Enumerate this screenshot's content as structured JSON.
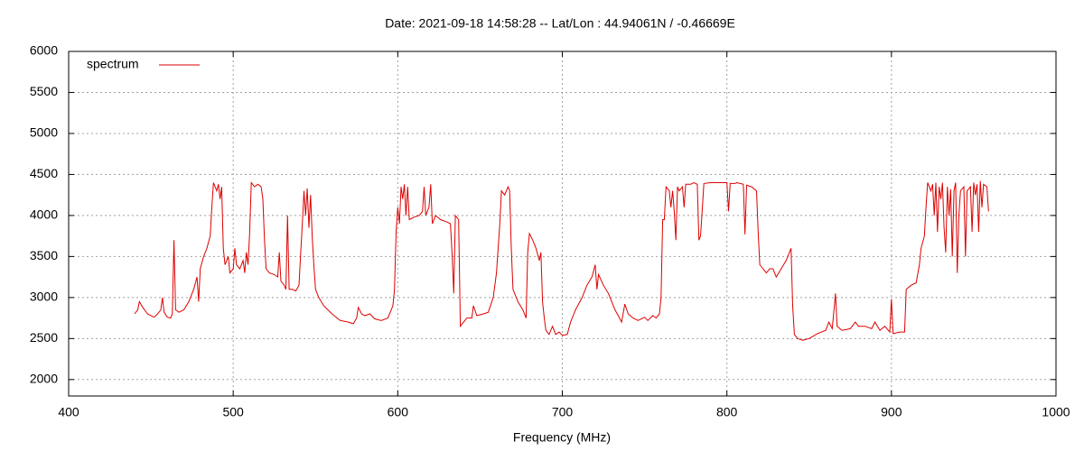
{
  "chart_data": {
    "type": "line",
    "title": "Date: 2021-09-18 14:58:28  --  Lat/Lon : 44.94061N / -0.46669E",
    "x_label": "Frequency (MHz)",
    "xlim": [
      400,
      1000
    ],
    "xticks": [
      400,
      500,
      600,
      700,
      800,
      900,
      1000
    ],
    "ylim": [
      1800,
      6000
    ],
    "yticks": [
      2000,
      2500,
      3000,
      3500,
      4000,
      4500,
      5000,
      5500,
      6000
    ],
    "grid": true,
    "legend": "top-left",
    "x": [
      440,
      442,
      443,
      445,
      448,
      450,
      452,
      454,
      456,
      457,
      458,
      460,
      462,
      463,
      464,
      465,
      467,
      470,
      473,
      476,
      478,
      479,
      480,
      482,
      484,
      486,
      487,
      488,
      490,
      491,
      492,
      493,
      494,
      495,
      497,
      498,
      500,
      501,
      502,
      504,
      506,
      507,
      508,
      509,
      510,
      511,
      513,
      515,
      517,
      518,
      519,
      520,
      522,
      525,
      527,
      528,
      529,
      531,
      532,
      533,
      534,
      536,
      538,
      540,
      541,
      542,
      543,
      544,
      545,
      546,
      547,
      548,
      549,
      550,
      552,
      555,
      560,
      565,
      570,
      573,
      575,
      576,
      578,
      580,
      583,
      586,
      590,
      594,
      597,
      598,
      599,
      600,
      601,
      602,
      603,
      604,
      605,
      606,
      607,
      610,
      613,
      615,
      616,
      617,
      619,
      620,
      621,
      623,
      626,
      630,
      632,
      633,
      634,
      635,
      637,
      638,
      640,
      642,
      645,
      646,
      648,
      652,
      655,
      658,
      660,
      662,
      663,
      665,
      667,
      668,
      669,
      670,
      673,
      676,
      678,
      679,
      680,
      682,
      684,
      686,
      687,
      688,
      689,
      690,
      692,
      694,
      696,
      698,
      700,
      703,
      705,
      708,
      712,
      715,
      718,
      720,
      721,
      722,
      725,
      728,
      730,
      732,
      734,
      736,
      738,
      740,
      743,
      746,
      750,
      752,
      755,
      757,
      759,
      760,
      761,
      762,
      763,
      765,
      766,
      767,
      768,
      769,
      770,
      771,
      773,
      774,
      775,
      778,
      780,
      782,
      783,
      784,
      785,
      786,
      790,
      795,
      800,
      801,
      802,
      805,
      806,
      810,
      811,
      812,
      815,
      818,
      819,
      820,
      822,
      824,
      826,
      828,
      830,
      833,
      836,
      839,
      840,
      841,
      843,
      846,
      850,
      855,
      860,
      862,
      864,
      866,
      867,
      870,
      875,
      878,
      880,
      884,
      888,
      890,
      893,
      896,
      899,
      900,
      901,
      905,
      908,
      909,
      912,
      915,
      917,
      918,
      920,
      921,
      922,
      924,
      925,
      926,
      927,
      928,
      929,
      930,
      931,
      932,
      933,
      934,
      935,
      936,
      937,
      938,
      939,
      940,
      941,
      942,
      944,
      945,
      946,
      948,
      949,
      950,
      951,
      952,
      953,
      954,
      955,
      956,
      958,
      959
    ],
    "series": [
      {
        "name": "spectrum",
        "color": "#dd0000",
        "values": [
          2800,
          2850,
          2950,
          2880,
          2800,
          2780,
          2760,
          2800,
          2850,
          3000,
          2820,
          2760,
          2750,
          2800,
          3700,
          2850,
          2820,
          2850,
          2950,
          3100,
          3250,
          2950,
          3350,
          3500,
          3600,
          3750,
          4100,
          4400,
          4300,
          4380,
          4200,
          4350,
          3600,
          3400,
          3500,
          3300,
          3350,
          3600,
          3400,
          3350,
          3450,
          3300,
          3550,
          3400,
          3800,
          4400,
          4350,
          4380,
          4350,
          4200,
          3700,
          3350,
          3300,
          3280,
          3250,
          3550,
          3200,
          3150,
          3100,
          4000,
          3100,
          3100,
          3080,
          3150,
          3550,
          3900,
          4300,
          4000,
          4330,
          3850,
          4250,
          3750,
          3400,
          3100,
          3000,
          2900,
          2800,
          2720,
          2700,
          2680,
          2750,
          2880,
          2800,
          2780,
          2800,
          2740,
          2720,
          2750,
          2900,
          3100,
          3800,
          4100,
          3900,
          4350,
          4200,
          4380,
          4000,
          4350,
          3950,
          3980,
          4000,
          4050,
          4350,
          4000,
          4100,
          4380,
          3900,
          4000,
          3950,
          3920,
          3900,
          3550,
          3050,
          4000,
          3950,
          2650,
          2700,
          2750,
          2750,
          2900,
          2780,
          2800,
          2820,
          3000,
          3300,
          3900,
          4300,
          4250,
          4350,
          4300,
          3600,
          3100,
          2950,
          2850,
          2750,
          3550,
          3780,
          3700,
          3600,
          3450,
          3550,
          2950,
          2750,
          2600,
          2550,
          2650,
          2550,
          2580,
          2540,
          2550,
          2700,
          2850,
          3000,
          3150,
          3250,
          3400,
          3100,
          3280,
          3150,
          3050,
          2950,
          2850,
          2780,
          2700,
          2920,
          2800,
          2750,
          2720,
          2760,
          2720,
          2780,
          2750,
          2800,
          3000,
          3950,
          3950,
          4350,
          4300,
          4100,
          4300,
          4050,
          3700,
          4350,
          4300,
          4350,
          4100,
          4380,
          4380,
          4400,
          4380,
          3700,
          3750,
          4050,
          4390,
          4400,
          4400,
          4400,
          4050,
          4390,
          4390,
          4400,
          4380,
          3770,
          4370,
          4350,
          4300,
          3800,
          3400,
          3350,
          3300,
          3350,
          3350,
          3250,
          3350,
          3450,
          3600,
          2900,
          2550,
          2500,
          2480,
          2500,
          2560,
          2600,
          2700,
          2620,
          3050,
          2650,
          2600,
          2620,
          2700,
          2650,
          2650,
          2620,
          2700,
          2600,
          2650,
          2580,
          2980,
          2560,
          2580,
          2580,
          3100,
          3150,
          3180,
          3400,
          3600,
          3750,
          4100,
          4400,
          4300,
          4380,
          4000,
          4400,
          3800,
          4350,
          4200,
          4400,
          3850,
          3550,
          4350,
          4000,
          4320,
          3500,
          4300,
          4400,
          3300,
          4000,
          4300,
          4350,
          3500,
          4300,
          4350,
          3800,
          4400,
          4250,
          4380,
          3800,
          4420,
          4100,
          4380,
          4350,
          4050
        ]
      }
    ]
  }
}
